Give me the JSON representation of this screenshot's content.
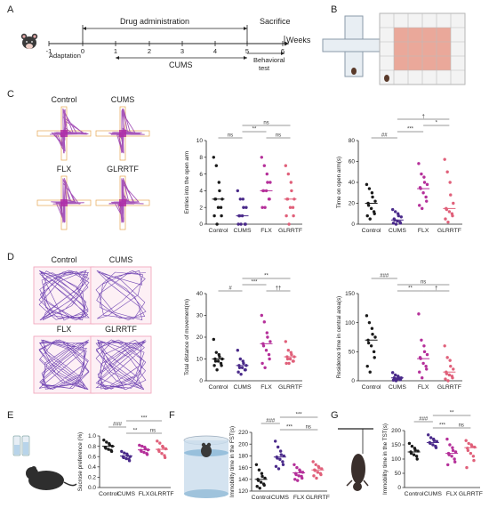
{
  "panels": {
    "A": {
      "letter": "A",
      "drug_label": "Drug administration",
      "sacrifice_label": "Sacrifice",
      "weeks_label": "Weeks",
      "ticks": [
        "-1",
        "0",
        "1",
        "2",
        "3",
        "4",
        "5",
        "6"
      ],
      "adaptation_label": "Adaptation",
      "cums_label": "CUMS",
      "behavioral_label_1": "Behavioral",
      "behavioral_label_2": "test"
    },
    "B": {
      "letter": "B"
    },
    "C": {
      "letter": "C",
      "maze_labels": [
        "Control",
        "CUMS",
        "FLX",
        "GLRRTF"
      ],
      "chart1": {
        "ylabel": "Entries into the open arm",
        "yticks": [
          "0",
          "2",
          "4",
          "6",
          "8",
          "10"
        ],
        "categories": [
          "Control",
          "CUMS",
          "FLX",
          "GLRRTF"
        ],
        "sigs": [
          "ns",
          "**",
          "ns",
          "ns"
        ]
      },
      "chart2": {
        "ylabel": "Time on open arm(s)",
        "yticks": [
          "0",
          "20",
          "40",
          "60",
          "80"
        ],
        "categories": [
          "Control",
          "CUMS",
          "FLX",
          "GLRRTF"
        ],
        "sigs": [
          "##",
          "***",
          "*",
          "†"
        ]
      }
    },
    "D": {
      "letter": "D",
      "field_labels": [
        "Control",
        "CUMS",
        "FLX",
        "GLRRTF"
      ],
      "chart1": {
        "ylabel": "Total distance of movement(m)",
        "yticks": [
          "0",
          "10",
          "20",
          "30",
          "40"
        ],
        "categories": [
          "Control",
          "CUMS",
          "FLX",
          "GLRRTF"
        ],
        "sigs": [
          "#",
          "***",
          "††",
          "**"
        ]
      },
      "chart2": {
        "ylabel": "Residence time in central area(s)",
        "yticks": [
          "0",
          "50",
          "100",
          "150"
        ],
        "categories": [
          "Control",
          "CUMS",
          "FLX",
          "GLRRTF"
        ],
        "sigs": [
          "###",
          "**",
          "†",
          "ns"
        ]
      }
    },
    "E": {
      "letter": "E",
      "ylabel": "Sucrose preference (%)",
      "yticks": [
        "0.0",
        "0.2",
        "0.4",
        "0.6",
        "0.8",
        "1.0"
      ],
      "categories": [
        "Control",
        "CUMS",
        "FLX",
        "GLRRTF"
      ],
      "sigs": [
        "###",
        "**",
        "ns",
        "***"
      ]
    },
    "F": {
      "letter": "F",
      "ylabel": "Immobility time in the FST(s)",
      "yticks": [
        "120",
        "140",
        "160",
        "180",
        "200",
        "220"
      ],
      "categories": [
        "Control",
        "CUMS",
        "FLX",
        "GLRRTF"
      ],
      "sigs": [
        "###",
        "***",
        "ns",
        "***"
      ]
    },
    "G": {
      "letter": "G",
      "ylabel": "Immobility time in the TST(s)",
      "yticks": [
        "0",
        "50",
        "100",
        "150",
        "200"
      ],
      "categories": [
        "Control",
        "CUMS",
        "FLX",
        "GLRRTF"
      ],
      "sigs": [
        "###",
        "***",
        "ns",
        "**"
      ]
    }
  },
  "colors": {
    "control": "#1a1a1a",
    "cums": "#4a2a8a",
    "flx": "#b5309a",
    "glrrtf": "#e0607a"
  },
  "chart_data": [
    {
      "type": "scatter",
      "title": "",
      "ylabel": "Entries into the open arm",
      "ylim": [
        0,
        10
      ],
      "categories": [
        "Control",
        "CUMS",
        "FLX",
        "GLRRTF"
      ],
      "series": [
        {
          "name": "Control",
          "values": [
            8,
            7,
            5,
            4,
            3,
            3,
            3,
            2,
            2,
            1,
            1,
            0
          ],
          "mean": 3
        },
        {
          "name": "CUMS",
          "values": [
            4,
            3,
            3,
            2,
            2,
            1,
            1,
            1,
            0,
            0,
            0,
            0
          ],
          "mean": 1
        },
        {
          "name": "FLX",
          "values": [
            8,
            7,
            6,
            5,
            5,
            4,
            4,
            4,
            3,
            3,
            2,
            2
          ],
          "mean": 4
        },
        {
          "name": "GLRRTF",
          "values": [
            7,
            6,
            5,
            4,
            3,
            3,
            3,
            2,
            2,
            1,
            1,
            0
          ],
          "mean": 3
        }
      ]
    },
    {
      "type": "scatter",
      "title": "",
      "ylabel": "Time on open arm(s)",
      "ylim": [
        0,
        80
      ],
      "categories": [
        "Control",
        "CUMS",
        "FLX",
        "GLRRTF"
      ],
      "series": [
        {
          "name": "Control",
          "values": [
            38,
            34,
            30,
            26,
            22,
            20,
            18,
            15,
            12,
            10,
            8,
            5
          ],
          "mean": 20
        },
        {
          "name": "CUMS",
          "values": [
            14,
            12,
            10,
            8,
            7,
            5,
            4,
            3,
            2,
            1,
            1,
            0
          ],
          "mean": 4
        },
        {
          "name": "FLX",
          "values": [
            58,
            48,
            45,
            40,
            38,
            35,
            34,
            30,
            26,
            22,
            18,
            15
          ],
          "mean": 34
        },
        {
          "name": "GLRRTF",
          "values": [
            62,
            50,
            40,
            28,
            20,
            15,
            14,
            12,
            10,
            8,
            5,
            2
          ],
          "mean": 15
        }
      ]
    },
    {
      "type": "scatter",
      "title": "",
      "ylabel": "Total distance of movement(m)",
      "ylim": [
        0,
        40
      ],
      "categories": [
        "Control",
        "CUMS",
        "FLX",
        "GLRRTF"
      ],
      "series": [
        {
          "name": "Control",
          "values": [
            19,
            13,
            12,
            11,
            10,
            10,
            9,
            9,
            8,
            7,
            7,
            5
          ],
          "mean": 10
        },
        {
          "name": "CUMS",
          "values": [
            14,
            10,
            9,
            8,
            7,
            7,
            6,
            6,
            5,
            5,
            4,
            3
          ],
          "mean": 7
        },
        {
          "name": "FLX",
          "values": [
            30,
            27,
            22,
            20,
            18,
            17,
            16,
            14,
            12,
            10,
            8,
            6
          ],
          "mean": 17
        },
        {
          "name": "GLRRTF",
          "values": [
            18,
            14,
            13,
            12,
            11,
            11,
            10,
            10,
            9,
            9,
            8,
            8
          ],
          "mean": 11
        }
      ]
    },
    {
      "type": "scatter",
      "title": "",
      "ylabel": "Residence time in central area(s)",
      "ylim": [
        0,
        150
      ],
      "categories": [
        "Control",
        "CUMS",
        "FLX",
        "GLRRTF"
      ],
      "series": [
        {
          "name": "Control",
          "values": [
            112,
            100,
            90,
            80,
            75,
            70,
            65,
            60,
            50,
            40,
            25,
            15
          ],
          "mean": 70
        },
        {
          "name": "CUMS",
          "values": [
            14,
            10,
            8,
            6,
            5,
            5,
            4,
            3,
            2,
            2,
            1,
            0
          ],
          "mean": 5
        },
        {
          "name": "FLX",
          "values": [
            115,
            70,
            60,
            50,
            45,
            40,
            38,
            30,
            25,
            20,
            15,
            5
          ],
          "mean": 38
        },
        {
          "name": "GLRRTF",
          "values": [
            60,
            40,
            35,
            25,
            20,
            15,
            12,
            10,
            8,
            5,
            3,
            0
          ],
          "mean": 15
        }
      ]
    },
    {
      "type": "scatter",
      "title": "",
      "ylabel": "Sucrose preference (%)",
      "ylim": [
        0,
        1.0
      ],
      "categories": [
        "Control",
        "CUMS",
        "FLX",
        "GLRRTF"
      ],
      "series": [
        {
          "name": "Control",
          "values": [
            0.92,
            0.88,
            0.85,
            0.82,
            0.8,
            0.78,
            0.76,
            0.74,
            0.72,
            0.7
          ],
          "mean": 0.8
        },
        {
          "name": "CUMS",
          "values": [
            0.7,
            0.67,
            0.65,
            0.62,
            0.6,
            0.6,
            0.58,
            0.56,
            0.55,
            0.52
          ],
          "mean": 0.61
        },
        {
          "name": "FLX",
          "values": [
            0.82,
            0.8,
            0.78,
            0.75,
            0.73,
            0.72,
            0.7,
            0.68,
            0.66,
            0.64
          ],
          "mean": 0.73
        },
        {
          "name": "GLRRTF",
          "values": [
            0.9,
            0.86,
            0.8,
            0.78,
            0.75,
            0.73,
            0.7,
            0.66,
            0.62,
            0.58
          ],
          "mean": 0.74
        }
      ]
    },
    {
      "type": "scatter",
      "title": "",
      "ylabel": "Immobility time in the FST(s)",
      "ylim": [
        120,
        220
      ],
      "categories": [
        "Control",
        "CUMS",
        "FLX",
        "GLRRTF"
      ],
      "series": [
        {
          "name": "Control",
          "values": [
            165,
            156,
            150,
            145,
            142,
            140,
            138,
            135,
            132,
            130,
            128,
            125
          ],
          "mean": 140
        },
        {
          "name": "CUMS",
          "values": [
            205,
            195,
            188,
            182,
            180,
            178,
            176,
            174,
            170,
            165,
            162,
            158
          ],
          "mean": 178
        },
        {
          "name": "FLX",
          "values": [
            165,
            160,
            156,
            154,
            152,
            150,
            148,
            146,
            145,
            142,
            140,
            138
          ],
          "mean": 151
        },
        {
          "name": "GLRRTF",
          "values": [
            170,
            165,
            162,
            160,
            158,
            156,
            155,
            152,
            150,
            148,
            146,
            142
          ],
          "mean": 156
        }
      ]
    },
    {
      "type": "scatter",
      "title": "",
      "ylabel": "Immobility time in the TST(s)",
      "ylim": [
        0,
        200
      ],
      "categories": [
        "Control",
        "CUMS",
        "FLX",
        "GLRRTF"
      ],
      "series": [
        {
          "name": "Control",
          "values": [
            155,
            145,
            138,
            132,
            128,
            125,
            120,
            115,
            110,
            100
          ],
          "mean": 125
        },
        {
          "name": "CUMS",
          "values": [
            185,
            175,
            170,
            165,
            162,
            158,
            155,
            150,
            145,
            140
          ],
          "mean": 158
        },
        {
          "name": "FLX",
          "values": [
            170,
            150,
            140,
            130,
            125,
            120,
            115,
            110,
            100,
            90,
            80
          ],
          "mean": 120
        },
        {
          "name": "GLRRTF",
          "values": [
            165,
            155,
            150,
            145,
            142,
            138,
            130,
            120,
            110,
            95,
            70
          ],
          "mean": 140
        }
      ]
    }
  ]
}
